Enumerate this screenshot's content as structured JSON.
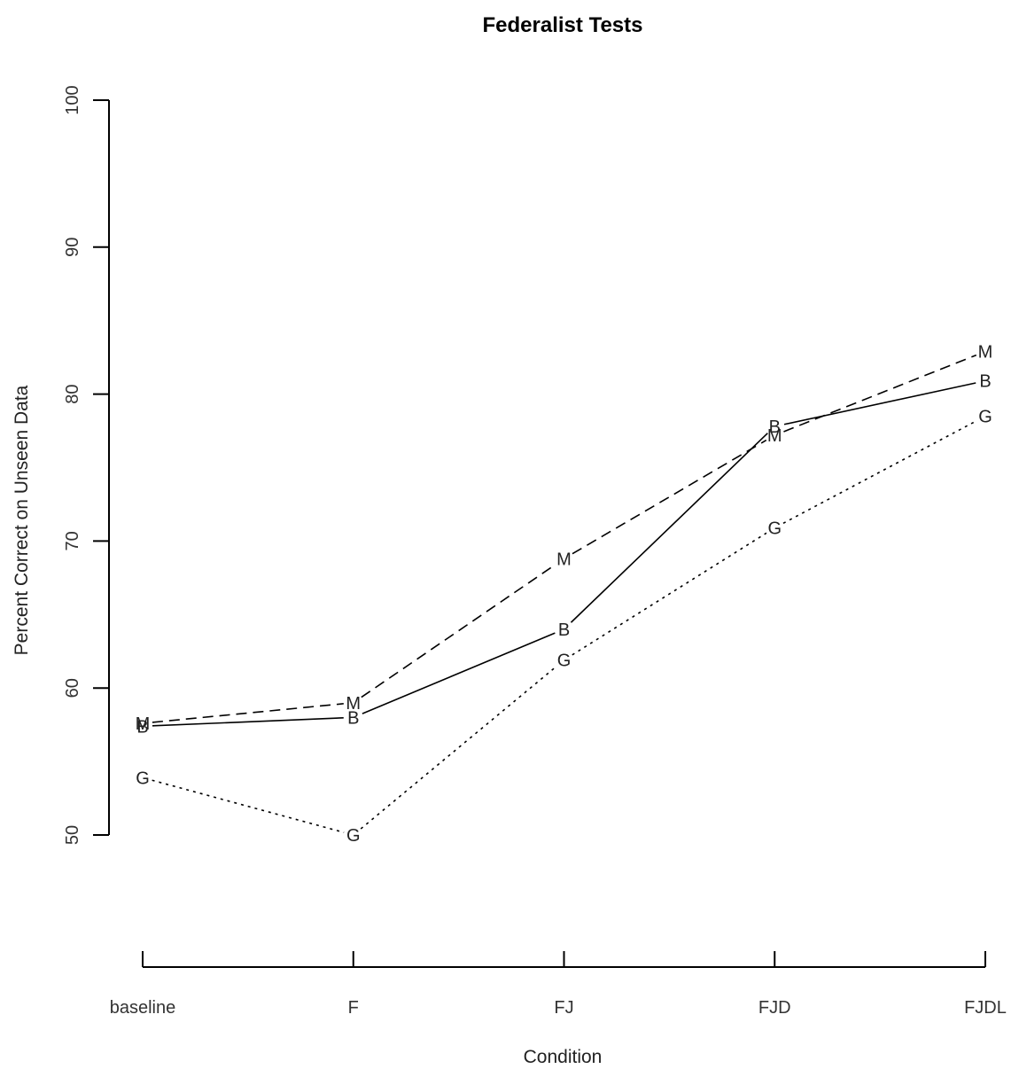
{
  "chart_data": {
    "type": "line",
    "title": "Federalist Tests",
    "xlabel": "Condition",
    "ylabel": "Percent Correct on Unseen Data",
    "categories": [
      "baseline",
      "F",
      "FJ",
      "FJD",
      "FJDL"
    ],
    "yticks": [
      "50",
      "60",
      "70",
      "80",
      "90",
      "100"
    ],
    "ylim": [
      50,
      100
    ],
    "grid": false,
    "legend": "none",
    "series": [
      {
        "name": "B",
        "line_style": "solid",
        "values": [
          57.4,
          58.0,
          64.0,
          77.8,
          80.9
        ]
      },
      {
        "name": "M",
        "line_style": "dashed",
        "values": [
          57.6,
          59.0,
          68.8,
          77.2,
          82.9
        ]
      },
      {
        "name": "G",
        "line_style": "dotted",
        "values": [
          53.9,
          50.0,
          61.9,
          70.9,
          78.5
        ]
      }
    ]
  }
}
